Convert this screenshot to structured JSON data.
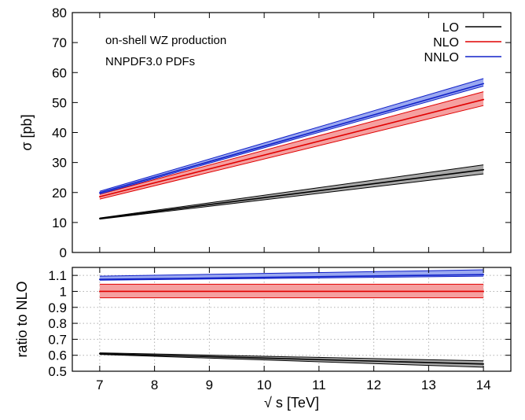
{
  "chart_data": [
    {
      "type": "line",
      "panel": "main",
      "ylabel": "σ [pb]",
      "ylim": [
        0,
        80
      ],
      "yticks": [
        0,
        10,
        20,
        30,
        40,
        50,
        60,
        70,
        80
      ],
      "xlim": [
        6.5,
        14.5
      ],
      "annotations": [
        "on-shell WZ production",
        "NNPDF3.0 PDFs"
      ],
      "legend_position": "top-right",
      "series": [
        {
          "name": "LO",
          "color": "#000000",
          "band_color": "#a8a8a8",
          "x": [
            7,
            14
          ],
          "y": [
            11.3,
            27.6
          ],
          "band_low": [
            11.1,
            26.2
          ],
          "band_high": [
            11.5,
            29.2
          ]
        },
        {
          "name": "NLO",
          "color": "#e00000",
          "band_color": "#f5a0a0",
          "x": [
            7,
            14
          ],
          "y": [
            18.6,
            51.0
          ],
          "band_low": [
            17.8,
            49.0
          ],
          "band_high": [
            19.4,
            53.6
          ]
        },
        {
          "name": "NNLO",
          "color": "#1020c8",
          "band_color": "#9aa8f0",
          "x": [
            7,
            14
          ],
          "y": [
            19.9,
            56.3
          ],
          "band_low": [
            19.5,
            55.5
          ],
          "band_high": [
            20.4,
            58.0
          ]
        }
      ]
    },
    {
      "type": "line",
      "panel": "ratio",
      "xlabel": "√ s [TeV]",
      "ylabel": "ratio to NLO",
      "ylim": [
        0.5,
        1.15
      ],
      "yticks": [
        0.5,
        0.6,
        0.7,
        0.8,
        0.9,
        1.0,
        1.1
      ],
      "ytick_labels": [
        "0.5",
        "0.6",
        "0.7",
        "0.8",
        "0.9",
        "1",
        "1.1"
      ],
      "xlim": [
        6.5,
        14.5
      ],
      "xticks": [
        7,
        8,
        9,
        10,
        11,
        12,
        13,
        14
      ],
      "grid": true,
      "series": [
        {
          "name": "LO",
          "color": "#000000",
          "band_color": "#a8a8a8",
          "x": [
            7,
            14
          ],
          "y": [
            0.61,
            0.545
          ],
          "band_low": [
            0.605,
            0.525
          ],
          "band_high": [
            0.615,
            0.565
          ]
        },
        {
          "name": "NLO",
          "color": "#e00000",
          "band_color": "#f5a0a0",
          "x": [
            7,
            14
          ],
          "y": [
            1.0,
            1.0
          ],
          "band_low": [
            0.96,
            0.96
          ],
          "band_high": [
            1.045,
            1.045
          ]
        },
        {
          "name": "NNLO",
          "color": "#1020c8",
          "band_color": "#9aa8f0",
          "x": [
            7,
            14
          ],
          "y": [
            1.075,
            1.105
          ],
          "band_low": [
            1.07,
            1.095
          ],
          "band_high": [
            1.095,
            1.135
          ]
        }
      ]
    }
  ]
}
